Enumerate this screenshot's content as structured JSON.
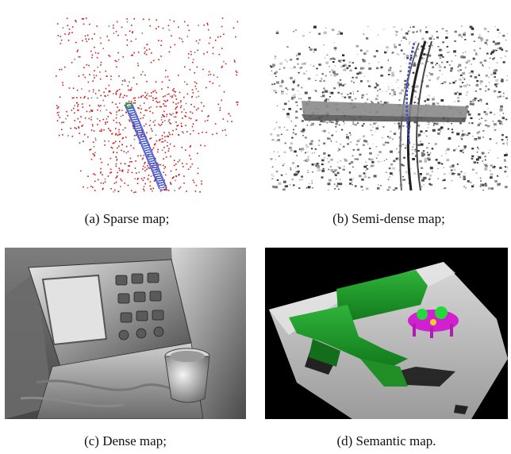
{
  "figure": {
    "panels": [
      {
        "id": "a",
        "caption": "(a) Sparse map;"
      },
      {
        "id": "b",
        "caption": "(b) Semi-dense map;"
      },
      {
        "id": "c",
        "caption": "(c) Dense map;"
      },
      {
        "id": "d",
        "caption": "(d) Semantic map."
      }
    ]
  },
  "colors": {
    "sparse_points": "#d81818",
    "trajectory": "#3a4fcf",
    "semantic_sofa": "#1f9a2a",
    "semantic_table": "#d020d0",
    "semantic_objects": "#22d83a",
    "semantic_floor": "#bdbdbd",
    "background_dark": "#000000"
  }
}
